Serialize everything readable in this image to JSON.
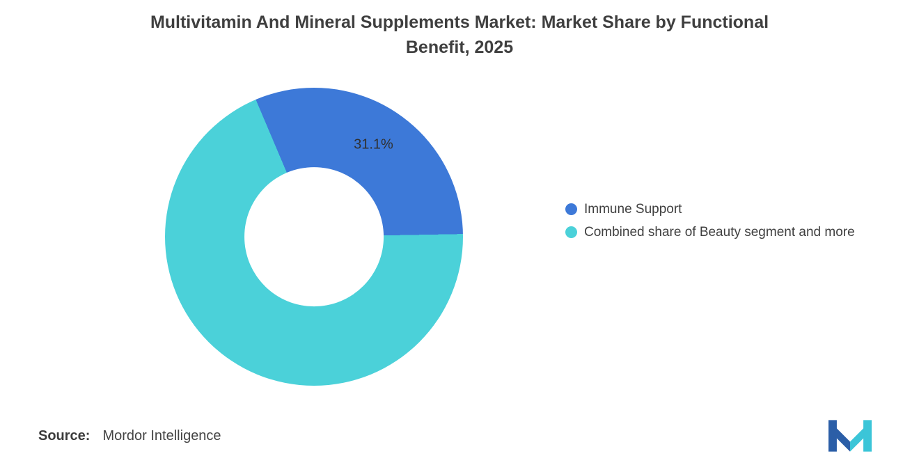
{
  "header": {
    "line1": "Multivitamin And Mineral Supplements Market: Market Share by Functional",
    "line2": "Benefit, 2025"
  },
  "chart_data": {
    "type": "pie",
    "subtype": "donut",
    "title": "Multivitamin And Mineral Supplements Market: Market Share by Functional Benefit, 2025",
    "legend_position": "right",
    "start_angle_deg": -23,
    "donut_hole_ratio": 0.467,
    "slices": [
      {
        "label": "Immune Support",
        "value": 31.1,
        "data_label": "31.1%",
        "color": "#3D79D8"
      },
      {
        "label": "Combined share of Beauty segment and more",
        "value": 68.9,
        "data_label": "",
        "color": "#4BD1D9"
      }
    ]
  },
  "source": {
    "label": "Source:",
    "value": "Mordor Intelligence"
  },
  "logo": {
    "name": "mordor-intelligence-logo",
    "blue": "#2B5EA7",
    "teal": "#3BC5D8"
  }
}
